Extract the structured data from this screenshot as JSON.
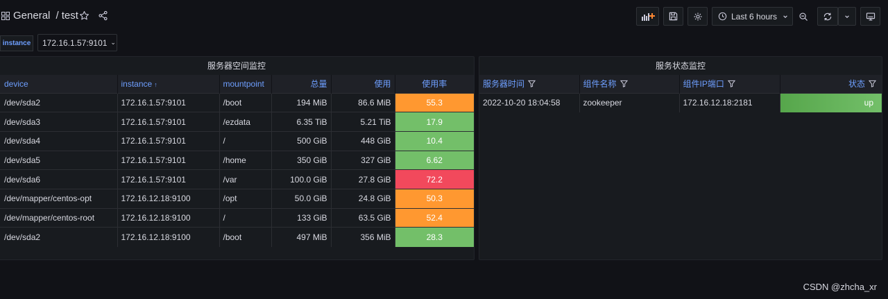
{
  "breadcrumb": {
    "folder": "General",
    "separator": "/",
    "dashboard": "test"
  },
  "toolbar": {
    "time_range": "Last 6 hours"
  },
  "variables": [
    {
      "label": "instance",
      "value": "172.16.1.57:9101"
    }
  ],
  "panel_space": {
    "title": "服务器空间监控",
    "columns": [
      "device",
      "instance",
      "mountpoint",
      "总量",
      "使用",
      "使用率"
    ],
    "rows": [
      {
        "device": "/dev/sda2",
        "instance": "172.16.1.57:9101",
        "mountpoint": "/boot",
        "total": "194 MiB",
        "used": "86.6 MiB",
        "rate": "55.3",
        "color": "#ff9830"
      },
      {
        "device": "/dev/sda3",
        "instance": "172.16.1.57:9101",
        "mountpoint": "/ezdata",
        "total": "6.35 TiB",
        "used": "5.21 TiB",
        "rate": "17.9",
        "color": "#73bf69"
      },
      {
        "device": "/dev/sda4",
        "instance": "172.16.1.57:9101",
        "mountpoint": "/",
        "total": "500 GiB",
        "used": "448 GiB",
        "rate": "10.4",
        "color": "#73bf69"
      },
      {
        "device": "/dev/sda5",
        "instance": "172.16.1.57:9101",
        "mountpoint": "/home",
        "total": "350 GiB",
        "used": "327 GiB",
        "rate": "6.62",
        "color": "#73bf69"
      },
      {
        "device": "/dev/sda6",
        "instance": "172.16.1.57:9101",
        "mountpoint": "/var",
        "total": "100.0 GiB",
        "used": "27.8 GiB",
        "rate": "72.2",
        "color": "#f2495c"
      },
      {
        "device": "/dev/mapper/centos-opt",
        "instance": "172.16.12.18:9100",
        "mountpoint": "/opt",
        "total": "50.0 GiB",
        "used": "24.8 GiB",
        "rate": "50.3",
        "color": "#ff9830"
      },
      {
        "device": "/dev/mapper/centos-root",
        "instance": "172.16.12.18:9100",
        "mountpoint": "/",
        "total": "133 GiB",
        "used": "63.5 GiB",
        "rate": "52.4",
        "color": "#ff9830"
      },
      {
        "device": "/dev/sda2",
        "instance": "172.16.12.18:9100",
        "mountpoint": "/boot",
        "total": "497 MiB",
        "used": "356 MiB",
        "rate": "28.3",
        "color": "#73bf69"
      }
    ]
  },
  "panel_status": {
    "title": "服务状态监控",
    "columns": [
      "服务器时间",
      "组件名称",
      "组件IP端口",
      "状态"
    ],
    "rows": [
      {
        "time": "2022-10-20 18:04:58",
        "name": "zookeeper",
        "ip_port": "172.16.12.18:2181",
        "status": "up",
        "color": "#56a64b"
      }
    ]
  },
  "watermark": "CSDN @zhcha_xr"
}
